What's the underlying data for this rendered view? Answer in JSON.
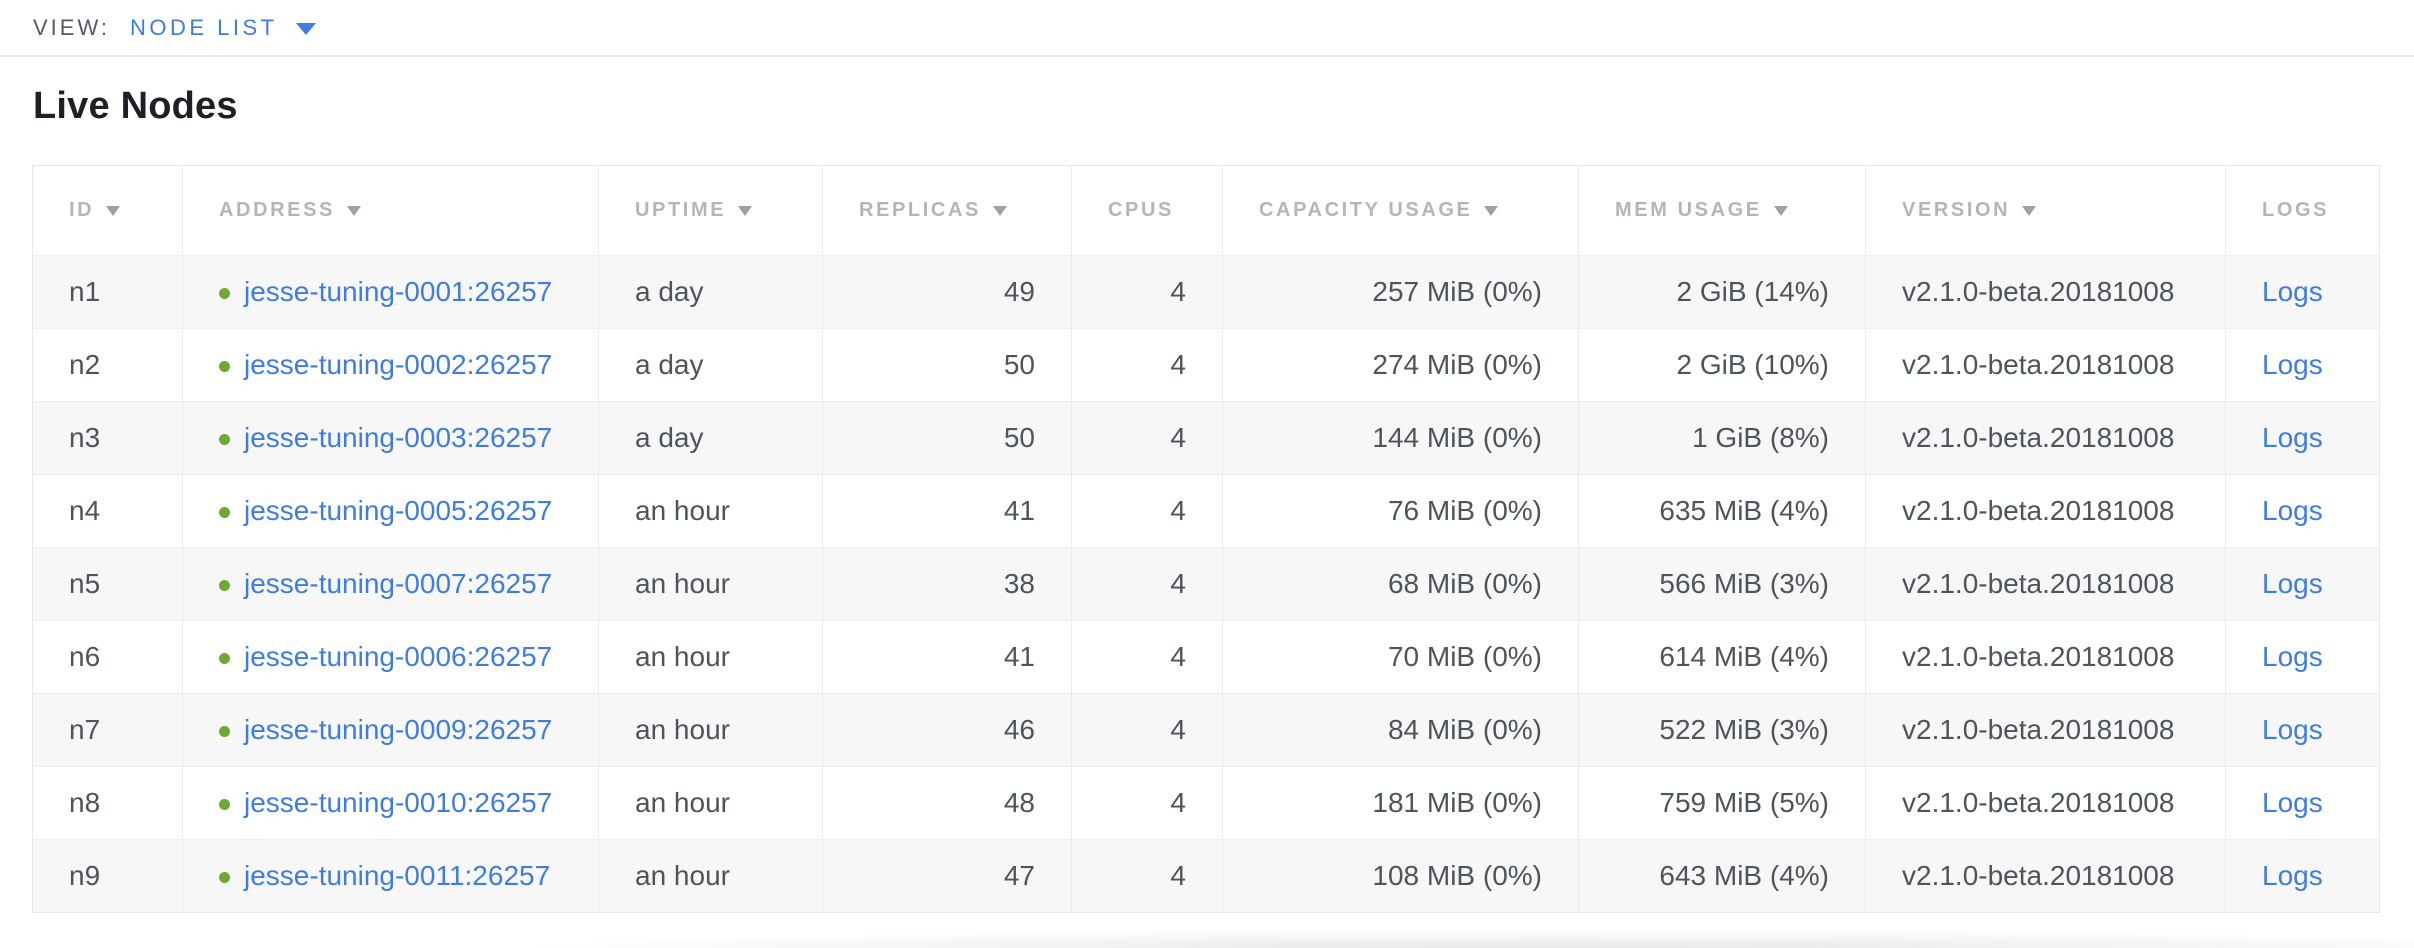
{
  "view_bar": {
    "label": "VIEW:",
    "selected": "NODE LIST"
  },
  "page": {
    "title": "Live Nodes"
  },
  "colors": {
    "link_blue": "#3e7ce2",
    "status_green": "#6fa833",
    "header_gray": "#b3b6b9",
    "cell_text": "#4e545b",
    "row_stripe": "#f7f7f7"
  },
  "table": {
    "columns": [
      {
        "label": "ID",
        "field": "id",
        "sortable": true,
        "align": "left"
      },
      {
        "label": "ADDRESS",
        "field": "address",
        "sortable": true,
        "align": "left"
      },
      {
        "label": "UPTIME",
        "field": "uptime",
        "sortable": true,
        "align": "left"
      },
      {
        "label": "REPLICAS",
        "field": "replicas",
        "sortable": true,
        "align": "right"
      },
      {
        "label": "CPUS",
        "field": "cpus",
        "sortable": false,
        "align": "right"
      },
      {
        "label": "CAPACITY USAGE",
        "field": "capacity",
        "sortable": true,
        "align": "right"
      },
      {
        "label": "MEM USAGE",
        "field": "mem",
        "sortable": true,
        "align": "right"
      },
      {
        "label": "VERSION",
        "field": "version",
        "sortable": true,
        "align": "left"
      },
      {
        "label": "LOGS",
        "field": "logs",
        "sortable": false,
        "align": "left"
      }
    ],
    "rows": [
      {
        "id": "n1",
        "address": "jesse-tuning-0001:26257",
        "uptime": "a day",
        "replicas": "49",
        "cpus": "4",
        "capacity": "257 MiB (0%)",
        "mem": "2 GiB (14%)",
        "version": "v2.1.0-beta.20181008",
        "logs": "Logs"
      },
      {
        "id": "n2",
        "address": "jesse-tuning-0002:26257",
        "uptime": "a day",
        "replicas": "50",
        "cpus": "4",
        "capacity": "274 MiB (0%)",
        "mem": "2 GiB (10%)",
        "version": "v2.1.0-beta.20181008",
        "logs": "Logs"
      },
      {
        "id": "n3",
        "address": "jesse-tuning-0003:26257",
        "uptime": "a day",
        "replicas": "50",
        "cpus": "4",
        "capacity": "144 MiB (0%)",
        "mem": "1 GiB (8%)",
        "version": "v2.1.0-beta.20181008",
        "logs": "Logs"
      },
      {
        "id": "n4",
        "address": "jesse-tuning-0005:26257",
        "uptime": "an hour",
        "replicas": "41",
        "cpus": "4",
        "capacity": "76 MiB (0%)",
        "mem": "635 MiB (4%)",
        "version": "v2.1.0-beta.20181008",
        "logs": "Logs"
      },
      {
        "id": "n5",
        "address": "jesse-tuning-0007:26257",
        "uptime": "an hour",
        "replicas": "38",
        "cpus": "4",
        "capacity": "68 MiB (0%)",
        "mem": "566 MiB (3%)",
        "version": "v2.1.0-beta.20181008",
        "logs": "Logs"
      },
      {
        "id": "n6",
        "address": "jesse-tuning-0006:26257",
        "uptime": "an hour",
        "replicas": "41",
        "cpus": "4",
        "capacity": "70 MiB (0%)",
        "mem": "614 MiB (4%)",
        "version": "v2.1.0-beta.20181008",
        "logs": "Logs"
      },
      {
        "id": "n7",
        "address": "jesse-tuning-0009:26257",
        "uptime": "an hour",
        "replicas": "46",
        "cpus": "4",
        "capacity": "84 MiB (0%)",
        "mem": "522 MiB (3%)",
        "version": "v2.1.0-beta.20181008",
        "logs": "Logs"
      },
      {
        "id": "n8",
        "address": "jesse-tuning-0010:26257",
        "uptime": "an hour",
        "replicas": "48",
        "cpus": "4",
        "capacity": "181 MiB (0%)",
        "mem": "759 MiB (5%)",
        "version": "v2.1.0-beta.20181008",
        "logs": "Logs"
      },
      {
        "id": "n9",
        "address": "jesse-tuning-0011:26257",
        "uptime": "an hour",
        "replicas": "47",
        "cpus": "4",
        "capacity": "108 MiB (0%)",
        "mem": "643 MiB (4%)",
        "version": "v2.1.0-beta.20181008",
        "logs": "Logs"
      }
    ]
  }
}
